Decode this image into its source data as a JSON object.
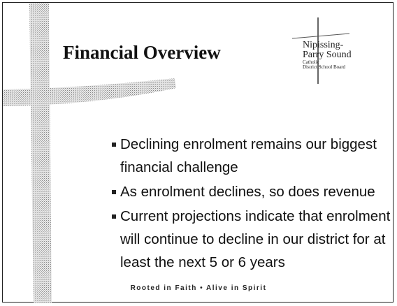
{
  "slide": {
    "title": "Financial Overview",
    "logo": {
      "lines": [
        "Nipissing-",
        "Parry Sound",
        "Catholic",
        "District School Board"
      ]
    },
    "bullets": [
      "Declining enrolment remains our biggest financial challenge",
      "As enrolment declines, so does revenue",
      "Current projections indicate that enrolment will continue to decline in our district for at least the next 5 or 6 years"
    ],
    "footer": "Rooted in Faith • Alive in Spirit"
  }
}
